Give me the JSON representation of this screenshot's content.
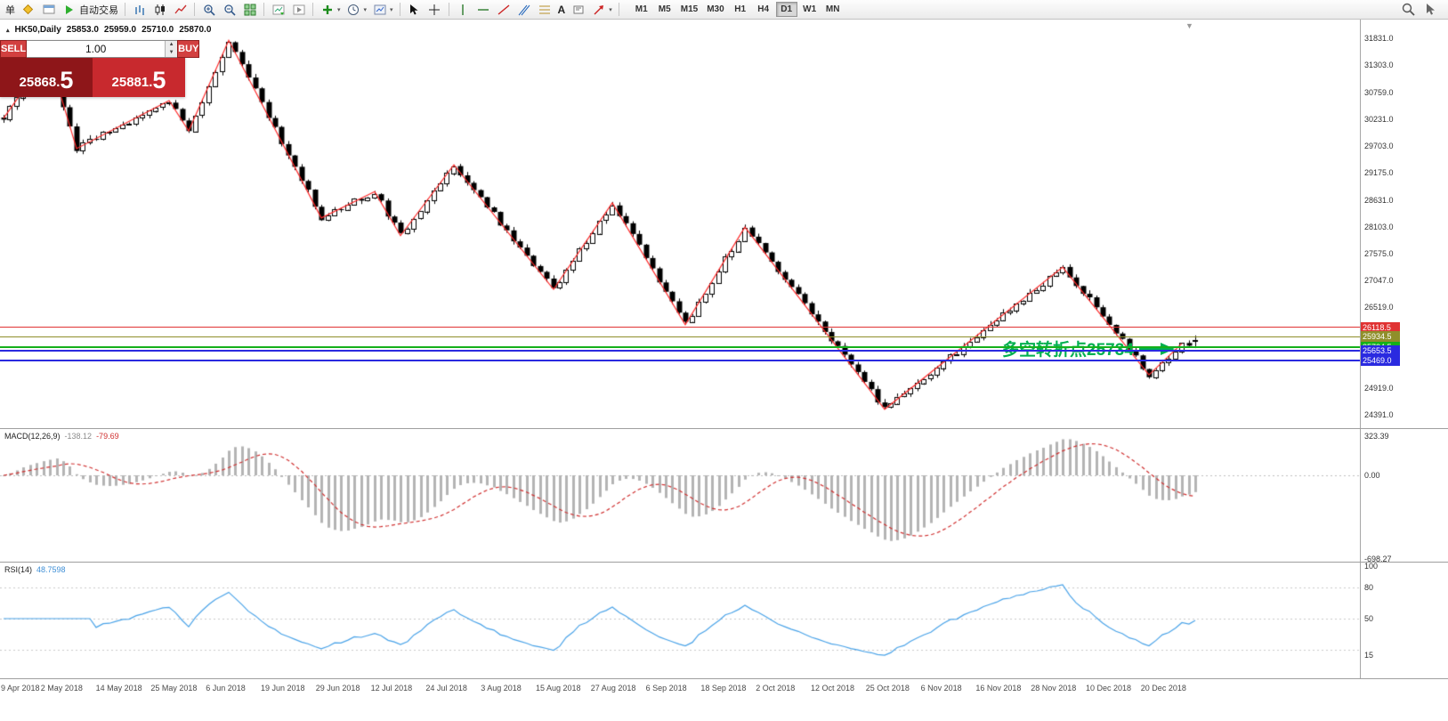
{
  "toolbar": {
    "new_order_label": "单",
    "auto_trading_label": "自动交易",
    "text_tool_label": "A",
    "timeframes": [
      "M1",
      "M5",
      "M15",
      "M30",
      "H1",
      "H4",
      "D1",
      "W1",
      "MN"
    ],
    "active_timeframe": "D1"
  },
  "quote_panel": {
    "sell_label": "SELL",
    "buy_label": "BUY",
    "volume": "1.00",
    "sell_price": "25868.",
    "sell_price_big": "5",
    "buy_price": "25881.",
    "buy_price_big": "5",
    "sell_button_color": "#d24040",
    "buy_button_color": "#d24040",
    "bid_bg": "#8e1619",
    "ask_bg": "#c8292e"
  },
  "chart": {
    "symbol_period": "HK50,Daily",
    "open": "25853.0",
    "high": "25959.0",
    "low": "25710.0",
    "close": "25870.0",
    "axis_labels": [
      {
        "text": "31831.0",
        "value": 31831
      },
      {
        "text": "31303.0",
        "value": 31303
      },
      {
        "text": "30759.0",
        "value": 30759
      },
      {
        "text": "30231.0",
        "value": 30231
      },
      {
        "text": "29703.0",
        "value": 29703
      },
      {
        "text": "29175.0",
        "value": 29175
      },
      {
        "text": "28631.0",
        "value": 28631
      },
      {
        "text": "28103.0",
        "value": 28103
      },
      {
        "text": "27575.0",
        "value": 27575
      },
      {
        "text": "27047.0",
        "value": 27047
      },
      {
        "text": "26519.0",
        "value": 26519
      },
      {
        "text": "24919.0",
        "value": 24919
      },
      {
        "text": "24391.0",
        "value": 24391
      }
    ],
    "levels": [
      {
        "label": "26118.5",
        "value": 26118.5,
        "color": "#e03232",
        "thickness": 1
      },
      {
        "label": "25934.5",
        "value": 25934.5,
        "color": "#8f8f2a",
        "thickness": 1
      },
      {
        "label": "25734.5",
        "value": 25734.5,
        "color": "#15b01a",
        "thickness": 2
      },
      {
        "label": "25653.5",
        "value": 25653.5,
        "color": "#2a2ae0",
        "thickness": 2
      },
      {
        "label": "25469.0",
        "value": 25469.0,
        "color": "#2a2ae0",
        "thickness": 2
      }
    ],
    "annotation": {
      "text": "多空转折点25734",
      "color": "#00b050"
    },
    "dates": [
      "9 Apr 2018",
      "2 May 2018",
      "14 May 2018",
      "25 May 2018",
      "6 Jun 2018",
      "19 Jun 2018",
      "29 Jun 2018",
      "12 Jul 2018",
      "24 Jul 2018",
      "3 Aug 2018",
      "15 Aug 2018",
      "27 Aug 2018",
      "6 Sep 2018",
      "18 Sep 2018",
      "2 Oct 2018",
      "12 Oct 2018",
      "25 Oct 2018",
      "6 Nov 2018",
      "16 Nov 2018",
      "28 Nov 2018",
      "10 Dec 2018",
      "20 Dec 2018"
    ]
  },
  "macd": {
    "label": "MACD(12,26,9)",
    "main_value": "-138.12",
    "signal_value": "-79.69",
    "axis_labels": [
      {
        "text": "323.39",
        "value": 323.39
      },
      {
        "text": "0.00",
        "value": 0
      },
      {
        "text": "-698.27",
        "value": -698.27
      }
    ],
    "bar_color": "#b4b4b4",
    "signal_color": "#d03030"
  },
  "rsi": {
    "label": "RSI(14)",
    "value": "48.7598",
    "axis_labels": [
      {
        "text": "100",
        "value": 100
      },
      {
        "text": "80",
        "value": 80
      },
      {
        "text": "50",
        "value": 50
      },
      {
        "text": "15",
        "value": 15
      }
    ],
    "line_color": "#4aa3e8",
    "levels": [
      80,
      50,
      20
    ]
  },
  "chart_data": {
    "type": "candlestick",
    "symbol": "HK50",
    "timeframe": "Daily",
    "candle_count": 181,
    "price_min": 24391,
    "price_max": 31831,
    "last_ohlc": {
      "open": 25853.0,
      "high": 25959.0,
      "low": 25710.0,
      "close": 25870.0
    },
    "zigzag": [
      [
        0,
        30250
      ],
      [
        3,
        30800
      ],
      [
        8,
        30950
      ],
      [
        11,
        29650
      ],
      [
        25,
        30600
      ],
      [
        28,
        30000
      ],
      [
        34,
        31790
      ],
      [
        48,
        28280
      ],
      [
        56,
        28800
      ],
      [
        60,
        27930
      ],
      [
        68,
        29330
      ],
      [
        83,
        26870
      ],
      [
        92,
        28580
      ],
      [
        103,
        26170
      ],
      [
        112,
        28100
      ],
      [
        133,
        24500
      ],
      [
        160,
        27310
      ],
      [
        173,
        25180
      ],
      [
        178,
        25800
      ]
    ],
    "zigzag_color": "#ff2a2a"
  }
}
